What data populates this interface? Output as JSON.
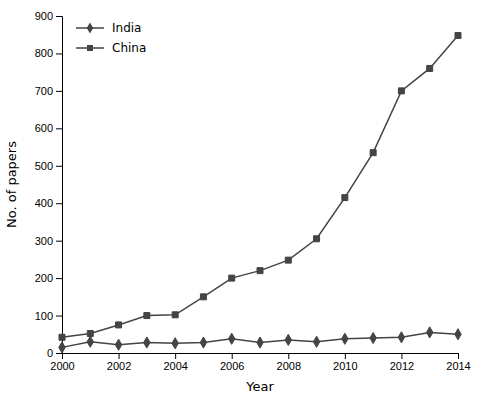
{
  "chart_data": {
    "type": "line",
    "x": [
      2000,
      2001,
      2002,
      2003,
      2004,
      2005,
      2006,
      2007,
      2008,
      2009,
      2010,
      2011,
      2012,
      2013,
      2014
    ],
    "series": [
      {
        "name": "India",
        "color": "#444444",
        "marker": "diamond",
        "values": [
          15,
          30,
          22,
          28,
          26,
          28,
          38,
          28,
          35,
          30,
          38,
          40,
          42,
          55,
          50
        ]
      },
      {
        "name": "China",
        "color": "#444444",
        "marker": "square",
        "values": [
          42,
          52,
          75,
          100,
          102,
          150,
          200,
          220,
          248,
          305,
          415,
          535,
          700,
          760,
          848
        ]
      }
    ],
    "xlabel": "Year",
    "ylabel": "No. of papers",
    "xlim": [
      2000,
      2014
    ],
    "xticks": [
      2000,
      2002,
      2004,
      2006,
      2008,
      2010,
      2012,
      2014
    ],
    "ylim": [
      0,
      900
    ],
    "yticks": [
      0,
      100,
      200,
      300,
      400,
      500,
      600,
      700,
      800,
      900
    ],
    "grid": false,
    "legend": "upper left"
  }
}
